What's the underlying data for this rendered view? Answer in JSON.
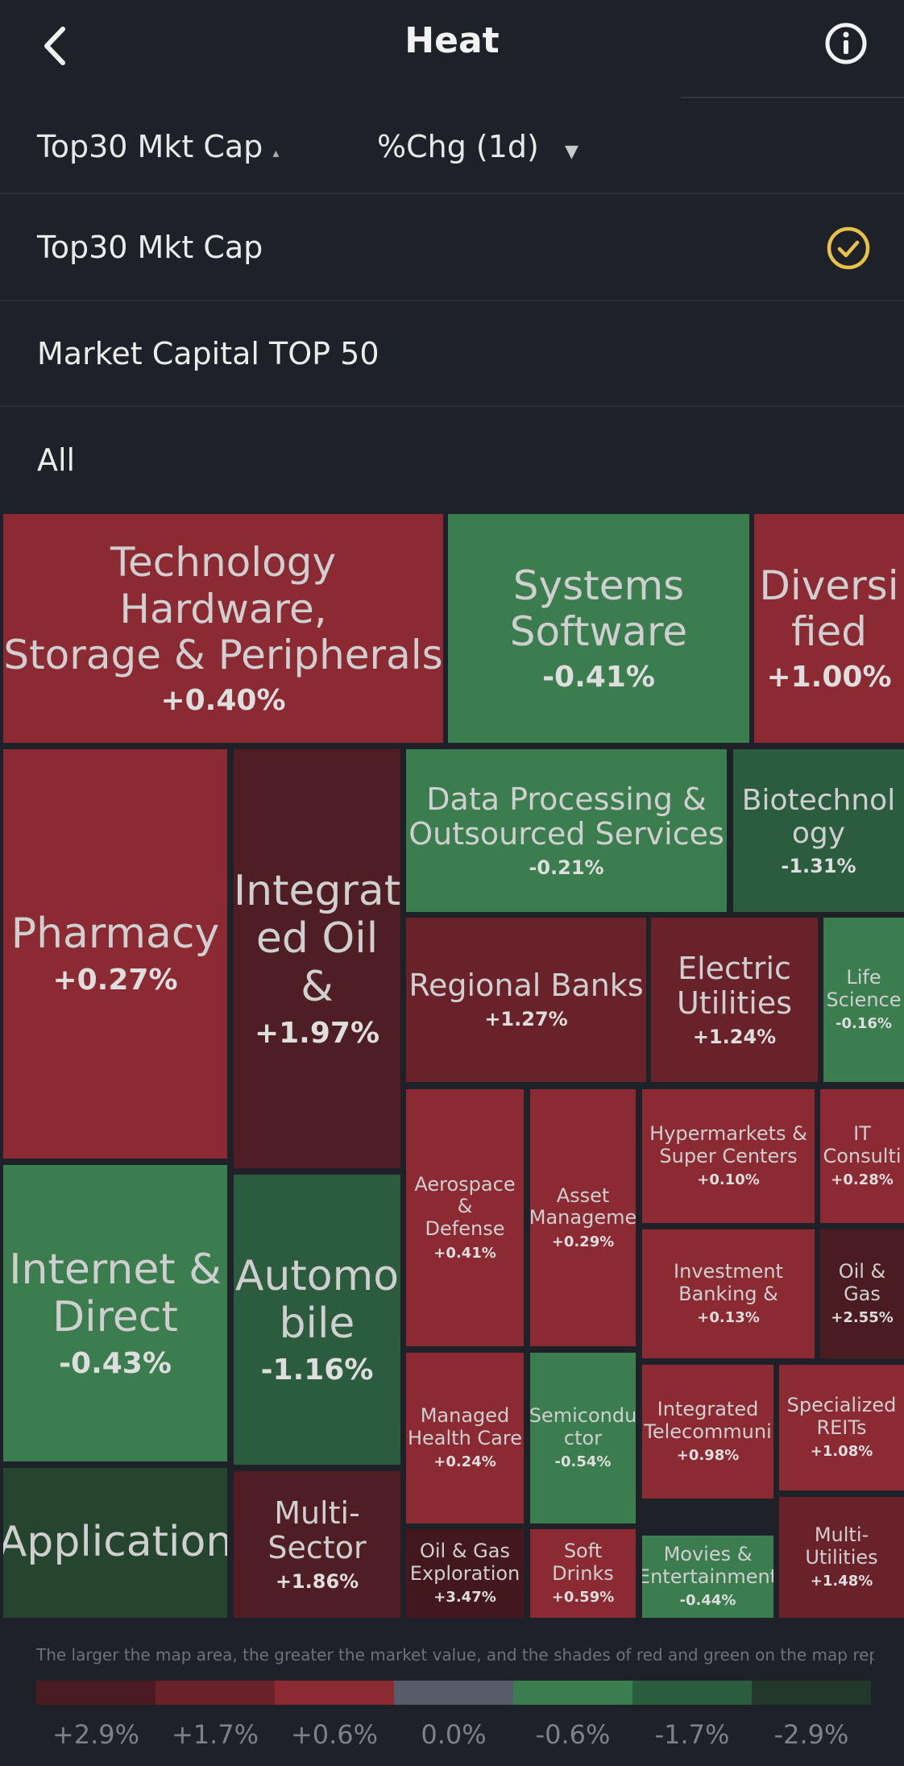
{
  "header": {
    "title": "Heat",
    "back_icon": "back-chevron-icon",
    "info_icon": "info-icon"
  },
  "filters": {
    "scope": "Top30 Mkt Cap",
    "metric": "%Chg (1d)"
  },
  "dropdown": {
    "options": [
      {
        "label": "Top30 Mkt Cap",
        "selected": true
      },
      {
        "label": "Market Capital TOP 50",
        "selected": false
      },
      {
        "label": "All",
        "selected": false
      }
    ],
    "check_icon": "check-circle-icon",
    "check_color": "#e8c14a"
  },
  "tiles": [
    {
      "name": "Technology Hardware,\nStorage & Peripherals",
      "pct": "+0.40%",
      "color": "#8b2a33"
    },
    {
      "name": "Systems\nSoftware",
      "pct": "-0.41%",
      "color": "#3c7d50"
    },
    {
      "name": "Diversi\nfied",
      "pct": "+1.00%",
      "color": "#8b2a33"
    },
    {
      "name": "Pharmacy",
      "pct": "+0.27%",
      "color": "#8b2a33"
    },
    {
      "name": "Integrat\ned Oil &",
      "pct": "+1.97%",
      "color": "#4f1e25"
    },
    {
      "name": "Data Processing &\nOutsourced Services",
      "pct": "-0.21%",
      "color": "#3c7d50"
    },
    {
      "name": "Biotechnol\nogy",
      "pct": "-1.31%",
      "color": "#2b5c3e"
    },
    {
      "name": "Regional Banks",
      "pct": "+1.27%",
      "color": "#6a222a"
    },
    {
      "name": "Electric\nUtilities",
      "pct": "+1.24%",
      "color": "#6a222a"
    },
    {
      "name": "Life\nScience",
      "pct": "-0.16%",
      "color": "#3c7d50"
    },
    {
      "name": "Internet &\nDirect",
      "pct": "-0.43%",
      "color": "#3c7d50"
    },
    {
      "name": "Automo\nbile",
      "pct": "-1.16%",
      "color": "#2b5c3e"
    },
    {
      "name": "Aerospace &\nDefense",
      "pct": "+0.41%",
      "color": "#8b2a33"
    },
    {
      "name": "Asset\nManageme",
      "pct": "+0.29%",
      "color": "#8b2a33"
    },
    {
      "name": "Hypermarkets &\nSuper Centers",
      "pct": "+0.10%",
      "color": "#8b2a33"
    },
    {
      "name": "IT\nConsulti",
      "pct": "+0.28%",
      "color": "#8b2a33"
    },
    {
      "name": "Investment\nBanking &",
      "pct": "+0.13%",
      "color": "#8b2a33"
    },
    {
      "name": "Oil &\nGas",
      "pct": "+2.55%",
      "color": "#4a1c22"
    },
    {
      "name": "Managed\nHealth Care",
      "pct": "+0.24%",
      "color": "#8b2a33"
    },
    {
      "name": "Semicondu\nctor",
      "pct": "-0.54%",
      "color": "#3c7d50"
    },
    {
      "name": "Integrated\nTelecommuni",
      "pct": "+0.98%",
      "color": "#8b2a33"
    },
    {
      "name": "Specialized\nREITs",
      "pct": "+1.08%",
      "color": "#8b2a33"
    },
    {
      "name": "Application",
      "pct": "",
      "color": "#26452f"
    },
    {
      "name": "Multi-\nSector",
      "pct": "+1.86%",
      "color": "#4f1e25"
    },
    {
      "name": "Oil & Gas\nExploration",
      "pct": "+3.47%",
      "color": "#42181e"
    },
    {
      "name": "Soft Drinks",
      "pct": "+0.59%",
      "color": "#8b2a33"
    },
    {
      "name": "Movies &\nEntertainment",
      "pct": "-0.44%",
      "color": "#3c7d50"
    },
    {
      "name": "Multi-Utilities",
      "pct": "+1.48%",
      "color": "#6a222a"
    }
  ],
  "legend": {
    "note": "The larger the map area, the greater the market value, and the shades of red and green on the map repre...",
    "swatches": [
      {
        "label": "+2.9%",
        "color": "#4a1c22"
      },
      {
        "label": "+1.7%",
        "color": "#6a222a"
      },
      {
        "label": "+0.6%",
        "color": "#8b2a33"
      },
      {
        "label": "0.0%",
        "color": "#585c6a"
      },
      {
        "label": "-0.6%",
        "color": "#3c7d50"
      },
      {
        "label": "-1.7%",
        "color": "#2b5c3e"
      },
      {
        "label": "-2.9%",
        "color": "#22382a"
      }
    ]
  }
}
